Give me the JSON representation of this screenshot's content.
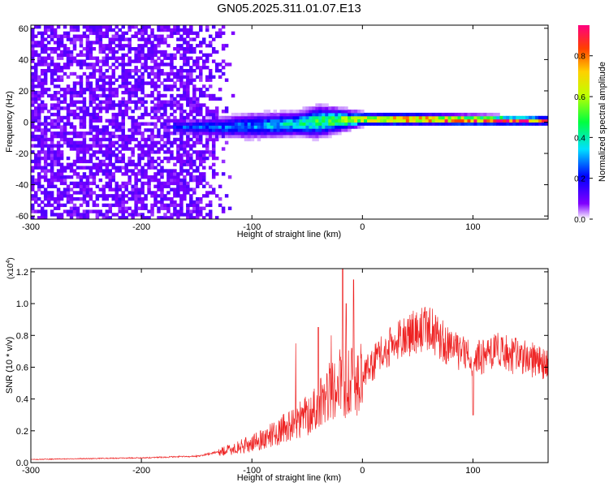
{
  "title": "GN05.2025.311.01.07.E13",
  "colors": {
    "axis": "#000000",
    "snr_line": "#ee2222",
    "background": "#ffffff"
  },
  "chart_data": [
    {
      "type": "heatmap",
      "xlabel": "Height of straight line (km)",
      "ylabel": "Frequency (Hz)",
      "xlim": [
        -300,
        168
      ],
      "ylim": [
        -62,
        62
      ],
      "x_ticks": [
        -300,
        -200,
        -100,
        0,
        100
      ],
      "x_tick_labels": [
        "-300",
        "-200",
        "-100",
        "0",
        "100"
      ],
      "y_ticks": [
        60,
        40,
        20,
        0,
        -20,
        -40,
        -60
      ],
      "y_tick_labels": [
        "60",
        "40",
        "20",
        "0",
        "-20",
        "-40",
        "-60"
      ],
      "colorbar": {
        "label": "Normalized spectral amplitude",
        "range": [
          0,
          0.95
        ],
        "ticks": [
          0,
          0.2,
          0.4,
          0.6,
          0.8
        ],
        "tick_labels": [
          "0.0",
          "0.2",
          "0.4",
          "0.6",
          "0.8"
        ],
        "colormap": "rainbow"
      },
      "features": {
        "noise_region_x": [
          -300,
          -115
        ],
        "noise_amplitude": 0.1,
        "signal_band_center": [
          [
            -170,
            -3
          ],
          [
            -120,
            -3
          ],
          [
            -60,
            -1
          ],
          [
            -30,
            1
          ],
          [
            0,
            2
          ],
          [
            50,
            2
          ],
          [
            100,
            1.5
          ],
          [
            168,
            1
          ]
        ],
        "signal_band_halfwidth": [
          [
            -170,
            5
          ],
          [
            -100,
            10
          ],
          [
            -60,
            9
          ],
          [
            -40,
            12
          ],
          [
            0,
            5
          ],
          [
            100,
            4
          ],
          [
            168,
            3
          ]
        ],
        "peak_amplitude": [
          [
            -170,
            0.25
          ],
          [
            -100,
            0.3
          ],
          [
            -50,
            0.45
          ],
          [
            0,
            0.7
          ],
          [
            30,
            0.85
          ],
          [
            60,
            0.9
          ],
          [
            90,
            0.9
          ],
          [
            168,
            0.9
          ]
        ]
      }
    },
    {
      "type": "line",
      "xlabel": "Height of straight line (km)",
      "ylabel": "SNR (10 * v/v)",
      "y_multiplier": "(x10⁴)",
      "y_multiplier_base": "(x10",
      "y_multiplier_exp": "4",
      "y_multiplier_close": ")",
      "xlim": [
        -300,
        168
      ],
      "ylim": [
        0,
        1.22
      ],
      "x_ticks": [
        -300,
        -200,
        -100,
        0,
        100
      ],
      "x_tick_labels": [
        "-300",
        "-200",
        "-100",
        "0",
        "100"
      ],
      "y_ticks": [
        0,
        0.2,
        0.4,
        0.6,
        0.8,
        1.0,
        1.2
      ],
      "y_tick_labels": [
        "0.0",
        "0.2",
        "0.4",
        "0.6",
        "0.8",
        "1.0",
        "1.2"
      ],
      "series": [
        {
          "envelope": [
            [
              -300,
              0.02
            ],
            [
              -200,
              0.03
            ],
            [
              -150,
              0.04
            ],
            [
              -120,
              0.08
            ],
            [
              -100,
              0.12
            ],
            [
              -80,
              0.18
            ],
            [
              -60,
              0.25
            ],
            [
              -40,
              0.35
            ],
            [
              -30,
              0.45
            ],
            [
              -20,
              0.5
            ],
            [
              -10,
              0.5
            ],
            [
              0,
              0.55
            ],
            [
              20,
              0.7
            ],
            [
              40,
              0.8
            ],
            [
              60,
              0.85
            ],
            [
              70,
              0.78
            ],
            [
              80,
              0.72
            ],
            [
              95,
              0.68
            ],
            [
              100,
              0.65
            ],
            [
              120,
              0.7
            ],
            [
              168,
              0.62
            ]
          ],
          "spikes": [
            [
              -60,
              0.75
            ],
            [
              -40,
              0.85
            ],
            [
              -28,
              0.8
            ],
            [
              -18,
              1.22
            ],
            [
              -15,
              1.0
            ],
            [
              -8,
              1.15
            ],
            [
              58,
              0.95
            ],
            [
              100,
              0.3
            ]
          ]
        }
      ]
    }
  ]
}
